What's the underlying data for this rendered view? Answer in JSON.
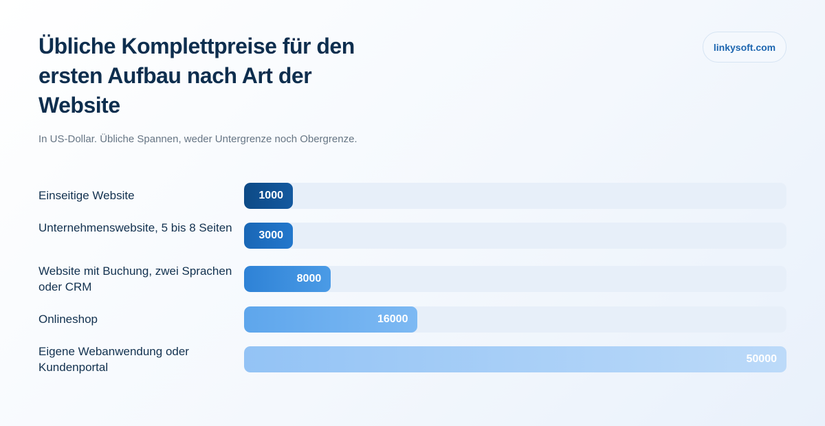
{
  "brand": "linkysoft.com",
  "chart_data": {
    "type": "bar",
    "orientation": "horizontal",
    "title": "Übliche Komplettpreise für den ersten Aufbau nach Art der Website",
    "subtitle": "In US-Dollar. Übliche Spannen, weder Untergrenze noch Obergrenze.",
    "categories": [
      "Einseitige Website",
      "Unternehmenswebsite, 5 bis 8 Seiten",
      "Website mit Buchung, zwei Sprachen oder CRM",
      "Onlineshop",
      "Eigene Webanwendung oder Kundenportal"
    ],
    "values": [
      1000,
      3000,
      8000,
      16000,
      50000
    ],
    "value_labels": [
      "1000",
      "3000",
      "8000",
      "16000",
      "50000"
    ],
    "xlim": [
      0,
      50000
    ],
    "grid": false,
    "legend": "none",
    "colors": [
      "#0e4c8a",
      "#1d6fc2",
      "#3b8ee0",
      "#6aaef0",
      "#a6cef8"
    ]
  }
}
